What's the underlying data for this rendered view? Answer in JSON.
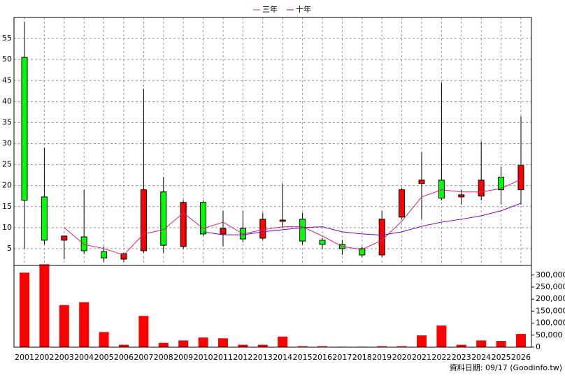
{
  "chart_data": {
    "type": "candlestick",
    "categories": [
      "2001",
      "2002",
      "2003",
      "2004",
      "2005",
      "2006",
      "2007",
      "2008",
      "2009",
      "2010",
      "2011",
      "2012",
      "2013",
      "2014",
      "2015",
      "2016",
      "2017",
      "2018",
      "2019",
      "2020",
      "2021",
      "2022",
      "2023",
      "2024",
      "2025",
      "2026"
    ],
    "open": [
      50.5,
      17.3,
      7,
      7.8,
      4.3,
      2.5,
      4.5,
      18.5,
      5.5,
      16,
      8.5,
      9.8,
      7.5,
      11.5,
      12,
      7,
      6,
      5,
      3.5,
      12.5,
      20.5,
      21.3,
      17.3,
      17.5,
      22,
      19
    ],
    "high": [
      59,
      29,
      8,
      19,
      5.5,
      4,
      43,
      22,
      16.5,
      16.5,
      14,
      14,
      13.5,
      20.5,
      13.5,
      7.5,
      7,
      5.5,
      14,
      19.5,
      28,
      44.5,
      19,
      30.5,
      24.5,
      36.5
    ],
    "low": [
      5,
      6,
      2.5,
      3.8,
      1.8,
      1.8,
      4,
      4,
      5,
      8,
      5.5,
      6.5,
      7,
      10,
      6,
      5,
      3.5,
      3,
      3,
      12,
      12,
      16.5,
      15.5,
      16.5,
      15.5,
      15.5
    ],
    "close": [
      16.5,
      7,
      8,
      4.5,
      2.8,
      3.8,
      19,
      5.8,
      16,
      8.5,
      9.8,
      7.3,
      12,
      11.8,
      6.8,
      6,
      5,
      3.5,
      12,
      19,
      21.3,
      17,
      17.8,
      21.3,
      19,
      24.8
    ],
    "up_color": "#ff0000",
    "down_color": "#00ff00",
    "series": [
      {
        "name": "三年",
        "color": "#e0207a",
        "values": [
          null,
          null,
          10,
          6,
          5,
          3.5,
          8.5,
          9.5,
          13.5,
          9.8,
          11.3,
          8.5,
          9.5,
          10.2,
          10.2,
          8,
          5.5,
          4.8,
          7,
          11.5,
          17.3,
          19,
          18.5,
          18.5,
          19.3,
          21.5
        ]
      },
      {
        "name": "十年",
        "color": "#8000c0",
        "values": [
          null,
          null,
          null,
          null,
          null,
          null,
          null,
          null,
          null,
          9,
          8.3,
          8.3,
          9,
          9.5,
          10,
          10.2,
          9,
          8.5,
          8.2,
          9,
          10.3,
          11.3,
          12,
          12.8,
          14,
          15.8
        ]
      }
    ],
    "ylim": [
      1,
      60
    ],
    "yticks": [
      5,
      10,
      15,
      20,
      25,
      30,
      35,
      40,
      45,
      50,
      55
    ],
    "grid": true,
    "legend": "top",
    "volume": {
      "type": "bar",
      "color": "#ff0000",
      "values": [
        310000,
        345000,
        175000,
        187000,
        63000,
        10000,
        130000,
        18000,
        28000,
        40000,
        37000,
        10000,
        10000,
        44000,
        4000,
        4000,
        2000,
        2000,
        4000,
        4000,
        49000,
        90000,
        10000,
        28000,
        26000,
        55000
      ],
      "ylim": [
        0,
        340000
      ],
      "yticks": [
        0,
        {
          "value": 50000,
          "label": "50,000"
        },
        {
          "value": 100000,
          "label": "100,000"
        },
        {
          "value": 150000,
          "label": "150,000"
        },
        {
          "value": 200000,
          "label": "200,000"
        },
        {
          "value": 250000,
          "label": "250,000"
        },
        {
          "value": 300000,
          "label": "300,000"
        }
      ]
    },
    "footnote": "資料日期: 09/17  (Goodinfo.tw)"
  }
}
